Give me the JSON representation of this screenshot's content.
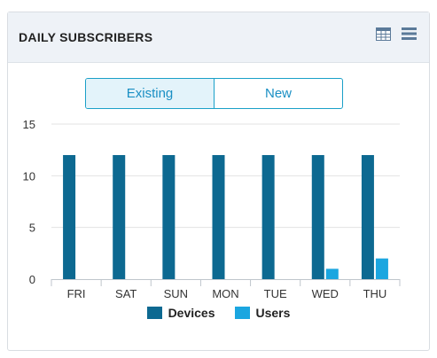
{
  "header": {
    "title": "DAILY SUBSCRIBERS"
  },
  "toggle": {
    "options": [
      "Existing",
      "New"
    ],
    "active": 0
  },
  "colors": {
    "devices": "#0d6991",
    "users": "#1ba6e0",
    "accent": "#1aa0c8"
  },
  "chart_data": {
    "type": "bar",
    "categories": [
      "FRI",
      "SAT",
      "SUN",
      "MON",
      "TUE",
      "WED",
      "THU"
    ],
    "series": [
      {
        "name": "Devices",
        "values": [
          12,
          12,
          12,
          12,
          12,
          12,
          12
        ]
      },
      {
        "name": "Users",
        "values": [
          0,
          0,
          0,
          0,
          0,
          1,
          2
        ]
      }
    ],
    "yticks": [
      0,
      5,
      10,
      15
    ],
    "ylim": [
      0,
      15
    ],
    "grid": true,
    "legend": "bottom"
  }
}
